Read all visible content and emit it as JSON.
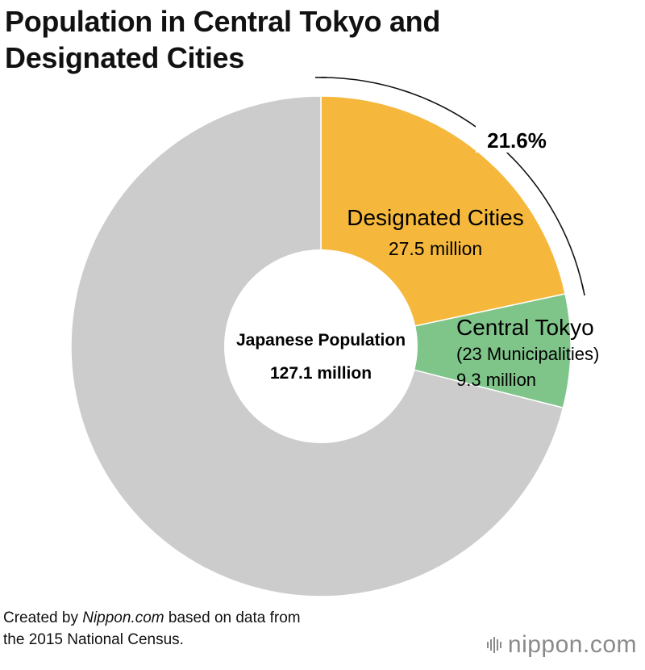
{
  "title_lines": [
    "Population in Central Tokyo and",
    "Designated Cities"
  ],
  "chart_data": {
    "type": "pie",
    "center_label": "Japanese Population",
    "center_value": "127.1 million",
    "total": 127.1,
    "slices": [
      {
        "name": "Designated Cities",
        "value": 27.5,
        "value_label": "27.5 million",
        "color": "#f5b83d"
      },
      {
        "name": "Central Tokyo",
        "subname": "(23 Municipalities)",
        "value": 9.3,
        "value_label": "9.3 million",
        "color": "#7fc58a"
      },
      {
        "name": "",
        "value": 90.3,
        "color": "#cccccc"
      }
    ],
    "annotation": "21.6%"
  },
  "footer": {
    "created_prefix": "Created by ",
    "created_brand": "Nippon.com",
    "created_suffix": " based on data from",
    "line2": "the 2015 National Census."
  },
  "logo": {
    "text_main": "nippon",
    "text_dot": ".com",
    "icon": "sound-bars-icon"
  }
}
